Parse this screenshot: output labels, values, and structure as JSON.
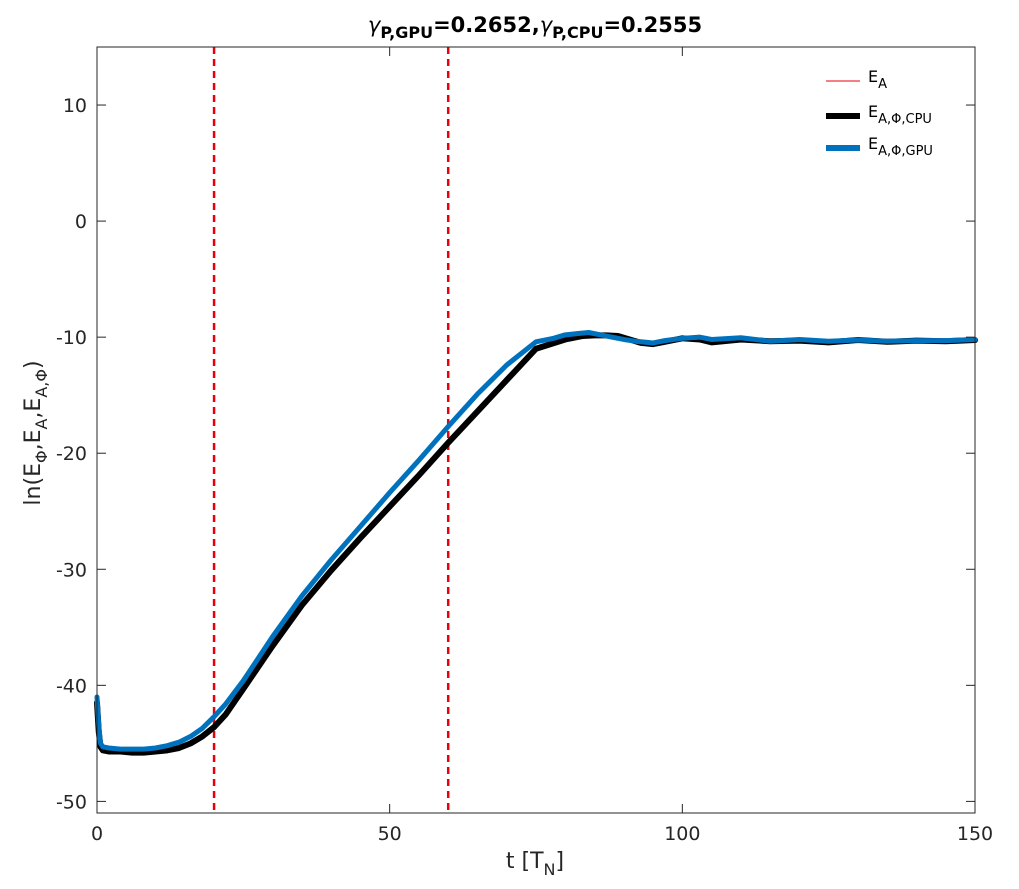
{
  "chart_data": {
    "type": "line",
    "title": {
      "gamma": "γ",
      "sub1": "P,GPU",
      "val1": "=0.2652,",
      "sub2": "P,CPU",
      "val2": "=0.2555"
    },
    "xlabel": {
      "main": "t [T",
      "sub": "N",
      "end": "]"
    },
    "ylabel": {
      "p1": "ln(E",
      "s1": "Φ",
      "p2": ",E",
      "s2": "A",
      "p3": ",E",
      "s3": "A,Φ",
      "p4": ")"
    },
    "xlim": [
      0,
      150
    ],
    "ylim": [
      -51,
      15
    ],
    "xticks": [
      0,
      50,
      100,
      150
    ],
    "xtick_labels": [
      "0",
      "50",
      "100",
      "150"
    ],
    "yticks": [
      10,
      0,
      -10,
      -20,
      -30,
      -40,
      -50
    ],
    "ytick_labels": [
      "10",
      "0",
      "-10",
      "-20",
      "-30",
      "-40",
      "-50"
    ],
    "grid": false,
    "legend_position": "top-right",
    "vlines": [
      {
        "x": 20,
        "color": "#e8000b",
        "style": "dashed"
      },
      {
        "x": 60,
        "color": "#e8000b",
        "style": "dashed"
      }
    ],
    "series": [
      {
        "name": "E",
        "sub": "A",
        "color": "#e8000b",
        "x": [],
        "y": []
      },
      {
        "name": "E",
        "sub": "A,Φ,CPU",
        "color": "#000000",
        "x": [
          0,
          0.3,
          0.6,
          1,
          2,
          4,
          6,
          8,
          10,
          12,
          14,
          16,
          18,
          20,
          22,
          25,
          30,
          35,
          40,
          45,
          50,
          55,
          60,
          65,
          70,
          75,
          80,
          83,
          85,
          87,
          89,
          90,
          91,
          93,
          95,
          97,
          100,
          103,
          105,
          110,
          115,
          120,
          125,
          130,
          135,
          140,
          145,
          150
        ],
        "y": [
          -41.5,
          -44,
          -45.3,
          -45.6,
          -45.7,
          -45.7,
          -45.8,
          -45.8,
          -45.7,
          -45.6,
          -45.4,
          -45,
          -44.4,
          -43.6,
          -42.5,
          -40.3,
          -36.6,
          -33.1,
          -30.1,
          -27.3,
          -24.6,
          -21.9,
          -19.1,
          -16.4,
          -13.7,
          -11,
          -10.2,
          -9.9,
          -9.85,
          -9.85,
          -9.9,
          -10.05,
          -10.2,
          -10.5,
          -10.6,
          -10.4,
          -10.1,
          -10.2,
          -10.45,
          -10.2,
          -10.35,
          -10.3,
          -10.45,
          -10.25,
          -10.4,
          -10.3,
          -10.35,
          -10.25
        ]
      },
      {
        "name": "E",
        "sub": "A,Φ,GPU",
        "color": "#0072bd",
        "x": [
          0,
          0.3,
          0.6,
          1,
          2,
          4,
          6,
          8,
          10,
          12,
          14,
          16,
          18,
          20,
          22,
          25,
          30,
          35,
          40,
          45,
          50,
          55,
          60,
          65,
          70,
          75,
          78,
          80,
          82,
          84,
          86,
          88,
          90,
          92,
          94,
          95,
          97,
          100,
          103,
          105,
          110,
          115,
          120,
          125,
          130,
          135,
          140,
          145,
          150
        ],
        "y": [
          -41,
          -43.5,
          -45,
          -45.3,
          -45.4,
          -45.5,
          -45.5,
          -45.5,
          -45.4,
          -45.2,
          -44.9,
          -44.4,
          -43.7,
          -42.7,
          -41.6,
          -39.6,
          -35.8,
          -32.3,
          -29.2,
          -26.3,
          -23.4,
          -20.6,
          -17.7,
          -14.9,
          -12.4,
          -10.4,
          -10.1,
          -9.8,
          -9.7,
          -9.6,
          -9.8,
          -10,
          -10.2,
          -10.35,
          -10.45,
          -10.5,
          -10.3,
          -10.1,
          -10.0,
          -10.2,
          -10.05,
          -10.35,
          -10.2,
          -10.35,
          -10.25,
          -10.35,
          -10.3,
          -10.3,
          -10.2
        ]
      }
    ]
  }
}
